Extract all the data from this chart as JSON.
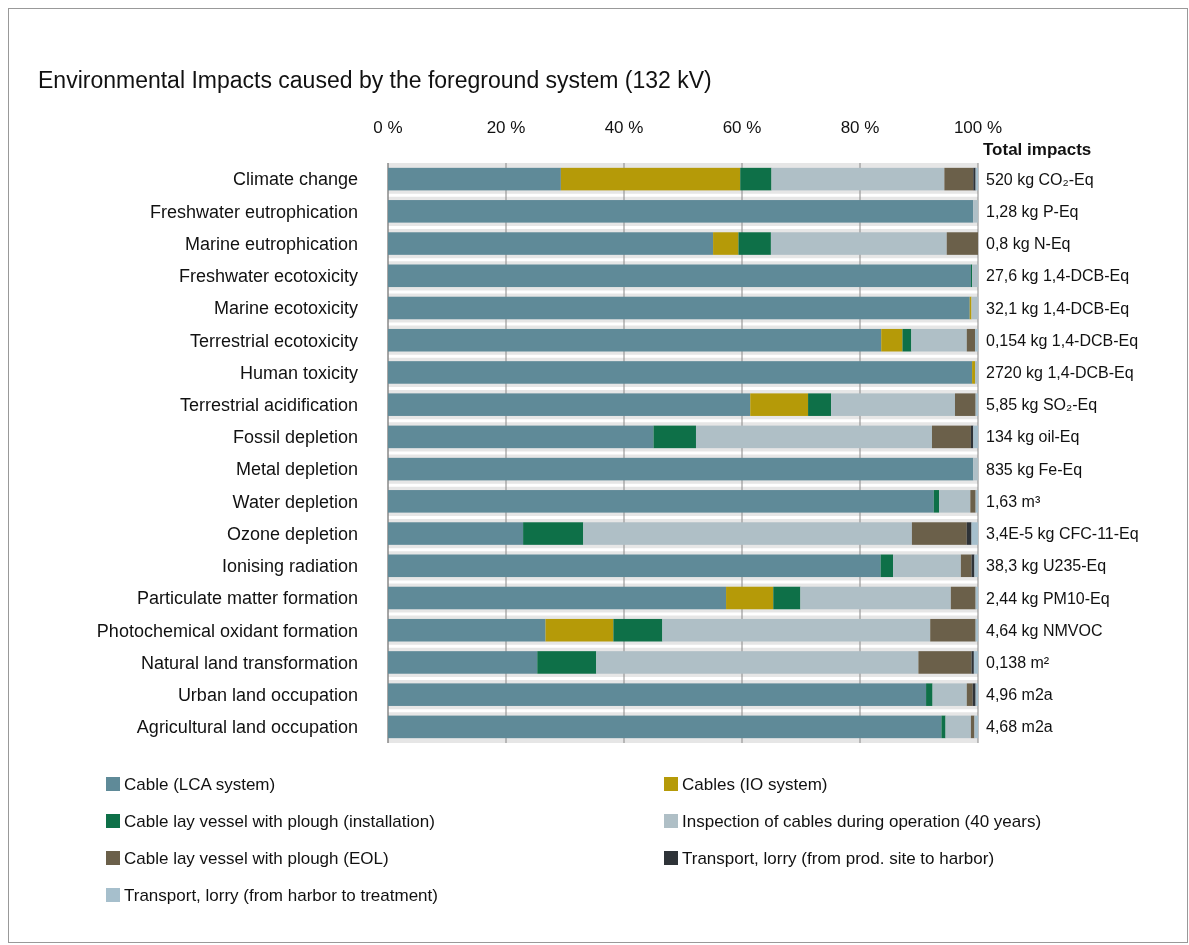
{
  "chart_data": {
    "type": "bar",
    "orientation": "horizontal",
    "stacked": true,
    "title": "Environmental Impacts caused by the foreground system (132 kV)",
    "categories": [
      "Climate change",
      "Freshwater eutrophication",
      "Marine eutrophication",
      "Freshwater ecotoxicity",
      "Marine ecotoxicity",
      "Terrestrial ecotoxicity",
      "Human toxicity",
      "Terrestrial acidification",
      "Fossil depletion",
      "Metal depletion",
      "Water depletion",
      "Ozone depletion",
      "Ionising radiation",
      "Particulate matter formation",
      "Photochemical oxidant formation",
      "Natural land transformation",
      "Urban land occupation",
      "Agricultural land occupation"
    ],
    "series": [
      {
        "name": "Cable (LCA system)",
        "color": "#5f8a98",
        "values": [
          29.3,
          99.2,
          55.1,
          98.8,
          98.6,
          83.6,
          99.0,
          61.4,
          45.0,
          99.2,
          92.5,
          22.9,
          83.5,
          57.3,
          26.7,
          25.3,
          91.2,
          93.8
        ]
      },
      {
        "name": "Cables (IO system)",
        "color": "#b59a08",
        "values": [
          30.4,
          0,
          4.3,
          0,
          0.3,
          3.6,
          0.5,
          9.8,
          0,
          0,
          0,
          0,
          0,
          8.0,
          11.5,
          0,
          0,
          0
        ]
      },
      {
        "name": "Cable lay vessel with plough (installation)",
        "color": "#0e7048",
        "values": [
          5.3,
          0,
          5.5,
          0.2,
          0,
          1.5,
          0,
          3.9,
          7.2,
          0,
          0.9,
          10.2,
          2.1,
          4.6,
          8.3,
          10.0,
          1.1,
          0.7
        ]
      },
      {
        "name": "Inspection of cables during operation (40 years)",
        "color": "#afbfc6",
        "values": [
          29.3,
          0.8,
          29.8,
          1.0,
          1.1,
          9.4,
          0.5,
          21.0,
          40.0,
          0.8,
          5.3,
          55.7,
          11.5,
          25.5,
          45.4,
          54.6,
          5.8,
          4.3
        ]
      },
      {
        "name": "Cable lay vessel with plough (EOL)",
        "color": "#6b604a",
        "values": [
          4.9,
          0,
          5.3,
          0,
          0,
          1.4,
          0,
          3.5,
          6.6,
          0,
          0.9,
          9.3,
          1.8,
          4.2,
          7.7,
          9.0,
          1.0,
          0.6
        ]
      },
      {
        "name": "Transport, lorry (from prod. site to harbor)",
        "color": "#2e3338",
        "values": [
          0.4,
          0,
          0,
          0,
          0,
          0,
          0,
          0,
          0.4,
          0,
          0,
          0.8,
          0.5,
          0,
          0,
          0.4,
          0.5,
          0
        ]
      },
      {
        "name": "Transport, lorry (from harbor to treatment)",
        "color": "#a6bfcc",
        "values": [
          0.4,
          0,
          0,
          0,
          0,
          0.5,
          0,
          0.4,
          0.8,
          0,
          0.4,
          1.1,
          0.6,
          0.4,
          0.4,
          0.7,
          0.4,
          0.6
        ]
      }
    ],
    "xlim": [
      0,
      100
    ],
    "xticks": [
      {
        "value": 0,
        "label": "0 %"
      },
      {
        "value": 20,
        "label": "20 %"
      },
      {
        "value": 40,
        "label": "40 %"
      },
      {
        "value": 60,
        "label": "60 %"
      },
      {
        "value": 80,
        "label": "80 %"
      },
      {
        "value": 100,
        "label": "100 %"
      }
    ],
    "grid": "x",
    "legend": "bottom",
    "annotations": [
      "Total impacts",
      "520 kg CO₂-Eq",
      "1,28 kg P-Eq",
      "0,8 kg N-Eq",
      "27,6 kg 1,4-DCB-Eq",
      "32,1 kg 1,4-DCB-Eq",
      "0,154 kg 1,4-DCB-Eq",
      "2720 kg 1,4-DCB-Eq",
      "5,85 kg SO₂-Eq",
      "134 kg oil-Eq",
      "835 kg Fe-Eq",
      "1,63 m³",
      "3,4E-5 kg CFC-11-Eq",
      "38,3 kg U235-Eq",
      "2,44 kg PM10-Eq",
      "4,64 kg NMVOC",
      "0,138 m²",
      "4,96 m2a",
      "4,68 m2a"
    ]
  }
}
